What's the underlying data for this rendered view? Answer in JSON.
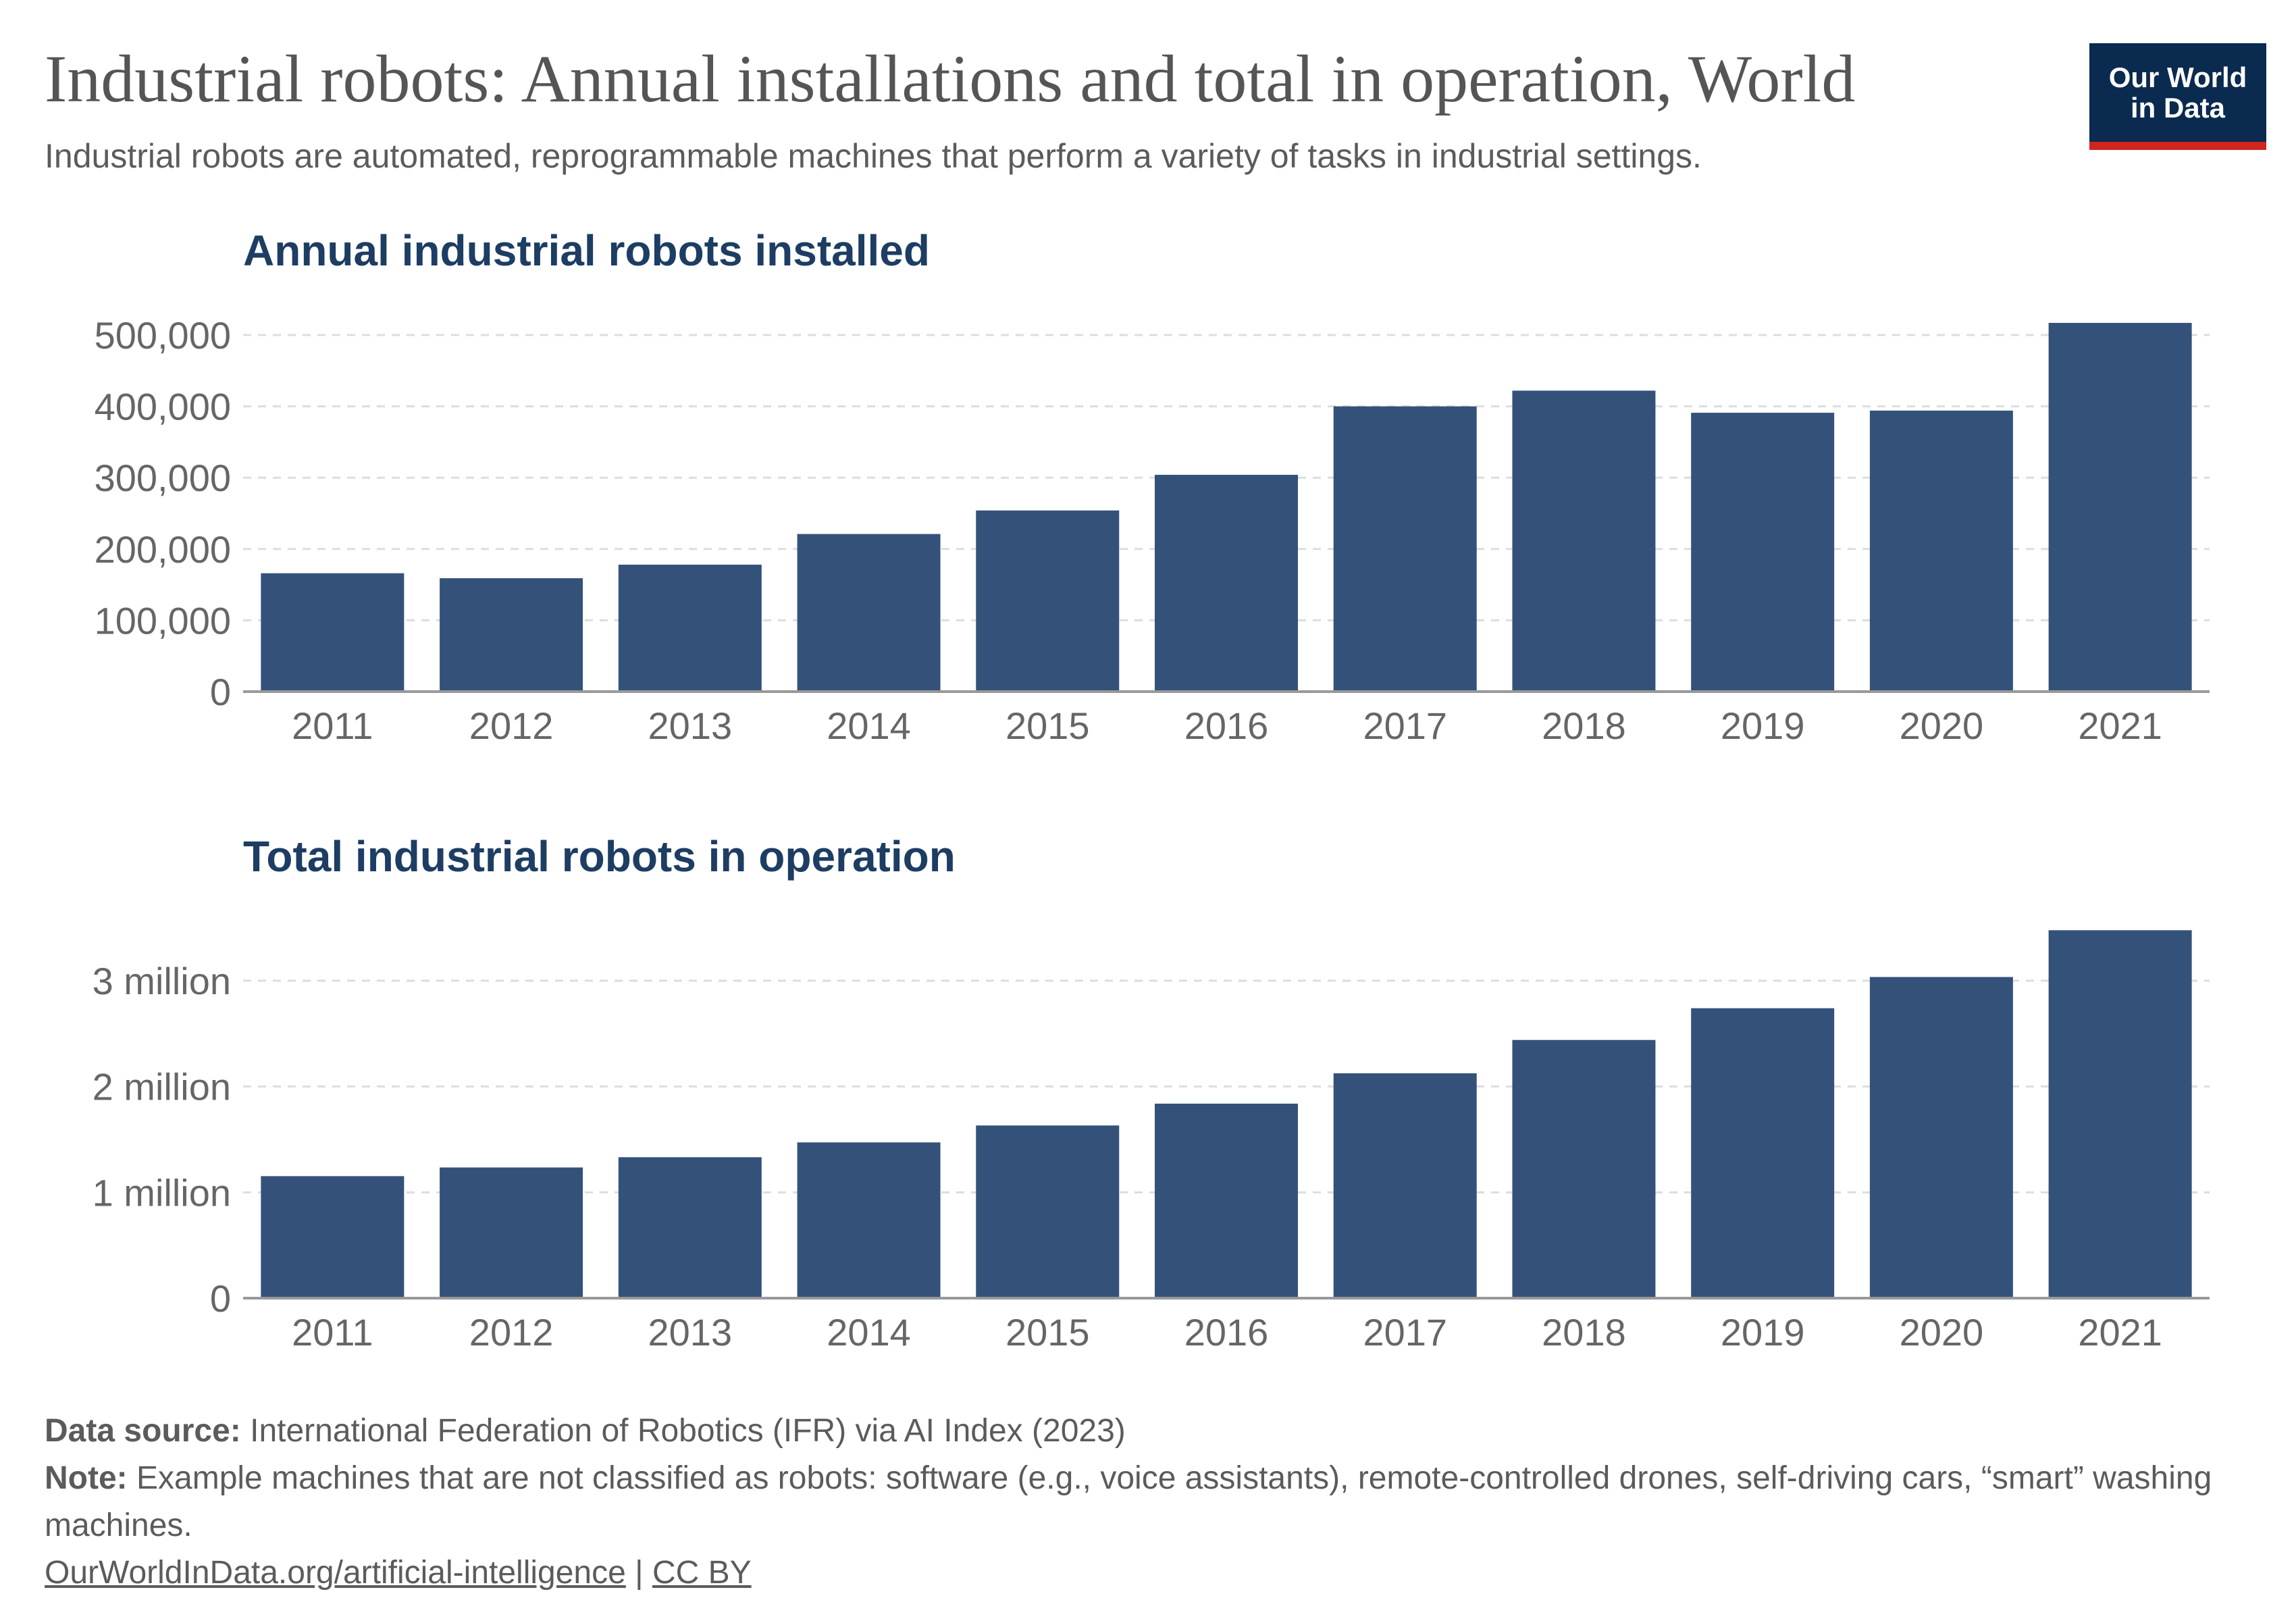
{
  "header": {
    "title": "Industrial robots: Annual installations and total in operation, World",
    "subtitle": "Industrial robots are automated, reprogrammable machines that perform a variety of tasks in industrial settings.",
    "logo_line1": "Our World",
    "logo_line2": "in Data"
  },
  "colors": {
    "bar": "#345279",
    "panel_title": "#1d3d63",
    "logo_bg": "#0b2a4f",
    "logo_accent": "#ce261e"
  },
  "chart_data": [
    {
      "type": "bar",
      "title": "Annual industrial robots installed",
      "categories": [
        "2011",
        "2012",
        "2013",
        "2014",
        "2015",
        "2016",
        "2017",
        "2018",
        "2019",
        "2020",
        "2021"
      ],
      "values": [
        166000,
        159000,
        178000,
        221000,
        254000,
        304000,
        400000,
        422000,
        391000,
        394000,
        517000
      ],
      "ylim": [
        0,
        500000
      ],
      "yticks": [
        0,
        100000,
        200000,
        300000,
        400000,
        500000
      ],
      "ytick_labels": [
        "0",
        "100,000",
        "200,000",
        "300,000",
        "400,000",
        "500,000"
      ],
      "grid": true,
      "xlabel": "",
      "ylabel": ""
    },
    {
      "type": "bar",
      "title": "Total industrial robots in operation",
      "categories": [
        "2011",
        "2012",
        "2013",
        "2014",
        "2015",
        "2016",
        "2017",
        "2018",
        "2019",
        "2020",
        "2021"
      ],
      "values": [
        1153000,
        1235000,
        1332000,
        1472000,
        1632000,
        1838000,
        2125000,
        2440000,
        2740000,
        3035000,
        3477000
      ],
      "ylim": [
        0,
        3000000
      ],
      "yticks": [
        0,
        1000000,
        2000000,
        3000000
      ],
      "ytick_labels": [
        "0",
        "1 million",
        "2 million",
        "3 million"
      ],
      "grid": true,
      "xlabel": "",
      "ylabel": ""
    }
  ],
  "footer": {
    "source_label": "Data source:",
    "source_text": "International Federation of Robotics (IFR) via AI Index (2023)",
    "note_label": "Note:",
    "note_text": "Example machines that are not classified as robots: software (e.g., voice assistants), remote-controlled drones, self-driving cars, “smart” washing machines.",
    "link_url": "OurWorldInData.org/artificial-intelligence",
    "link_separator": "|",
    "license": "CC BY"
  }
}
